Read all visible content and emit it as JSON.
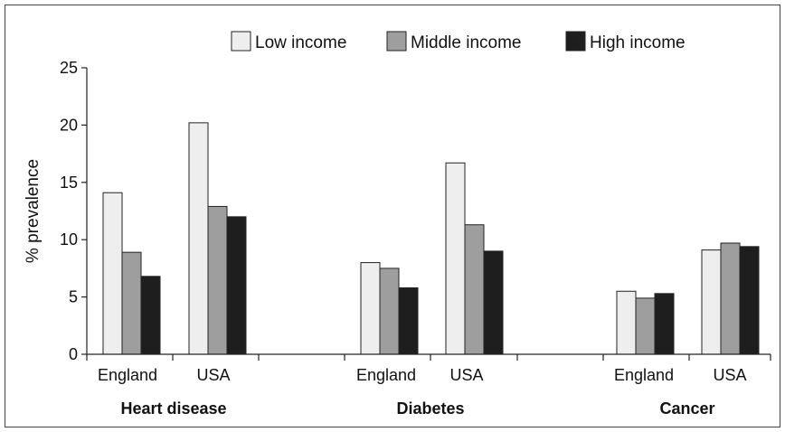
{
  "chart_data": {
    "type": "bar",
    "ylabel": "% prevalence",
    "ylim": [
      0,
      25
    ],
    "yticks": [
      0,
      5,
      10,
      15,
      20,
      25
    ],
    "groups": [
      {
        "name": "Heart disease",
        "categories": [
          "England",
          "USA"
        ]
      },
      {
        "name": "Diabetes",
        "categories": [
          "England",
          "USA"
        ]
      },
      {
        "name": "Cancer",
        "categories": [
          "England",
          "USA"
        ]
      }
    ],
    "series": [
      {
        "name": "Low income",
        "color": "#eeeeee",
        "values": [
          [
            14.1,
            20.2
          ],
          [
            8.0,
            16.7
          ],
          [
            5.5,
            9.1
          ]
        ]
      },
      {
        "name": "Middle income",
        "color": "#9e9e9e",
        "values": [
          [
            8.9,
            12.9
          ],
          [
            7.5,
            11.3
          ],
          [
            4.9,
            9.7
          ]
        ]
      },
      {
        "name": "High income",
        "color": "#1e1e1e",
        "values": [
          [
            6.8,
            12.0
          ],
          [
            5.8,
            9.0
          ],
          [
            5.3,
            9.4
          ]
        ]
      }
    ],
    "legend_position": "top",
    "grid": false
  }
}
